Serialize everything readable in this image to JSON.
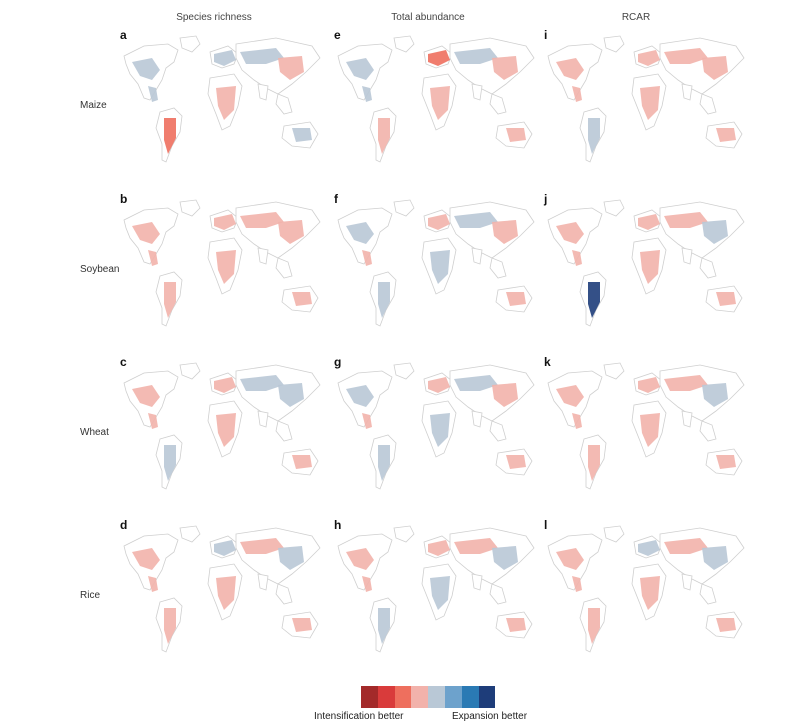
{
  "columns": [
    {
      "title": "Species richness"
    },
    {
      "title": "Total abundance"
    },
    {
      "title": "RCAR"
    }
  ],
  "rows": [
    {
      "label": "Maize"
    },
    {
      "label": "Soybean"
    },
    {
      "label": "Wheat"
    },
    {
      "label": "Rice"
    }
  ],
  "panels": [
    {
      "letter": "a",
      "row": 0,
      "col": 0,
      "pattern": [
        4,
        4,
        2,
        4,
        3,
        4,
        3,
        4
      ]
    },
    {
      "letter": "e",
      "row": 0,
      "col": 1,
      "pattern": [
        4,
        4,
        3,
        2,
        3,
        4,
        3,
        3
      ]
    },
    {
      "letter": "i",
      "row": 0,
      "col": 2,
      "pattern": [
        3,
        3,
        4,
        3,
        3,
        3,
        3,
        3
      ]
    },
    {
      "letter": "b",
      "row": 1,
      "col": 0,
      "pattern": [
        3,
        3,
        3,
        3,
        3,
        3,
        3,
        3
      ]
    },
    {
      "letter": "f",
      "row": 1,
      "col": 1,
      "pattern": [
        4,
        3,
        4,
        3,
        4,
        4,
        3,
        3
      ]
    },
    {
      "letter": "j",
      "row": 1,
      "col": 2,
      "pattern": [
        3,
        3,
        7,
        3,
        3,
        3,
        4,
        3
      ]
    },
    {
      "letter": "c",
      "row": 2,
      "col": 0,
      "pattern": [
        3,
        3,
        4,
        3,
        3,
        4,
        4,
        3
      ]
    },
    {
      "letter": "g",
      "row": 2,
      "col": 1,
      "pattern": [
        4,
        3,
        4,
        3,
        4,
        4,
        3,
        3
      ]
    },
    {
      "letter": "k",
      "row": 2,
      "col": 2,
      "pattern": [
        3,
        3,
        3,
        3,
        3,
        3,
        4,
        3
      ]
    },
    {
      "letter": "d",
      "row": 3,
      "col": 0,
      "pattern": [
        3,
        3,
        3,
        4,
        3,
        3,
        4,
        3
      ]
    },
    {
      "letter": "h",
      "row": 3,
      "col": 1,
      "pattern": [
        3,
        3,
        4,
        3,
        4,
        3,
        4,
        3
      ]
    },
    {
      "letter": "l",
      "row": 3,
      "col": 2,
      "pattern": [
        3,
        3,
        3,
        4,
        3,
        3,
        4,
        3
      ]
    }
  ],
  "legend": {
    "colors": [
      "#a32a2a",
      "#d93b3b",
      "#ee6f5e",
      "#f2b2ab",
      "#b9c8d6",
      "#6da2cc",
      "#2a7ab4",
      "#1e3d7a"
    ],
    "left_label": "Intensification better",
    "right_label": "Expansion better"
  }
}
